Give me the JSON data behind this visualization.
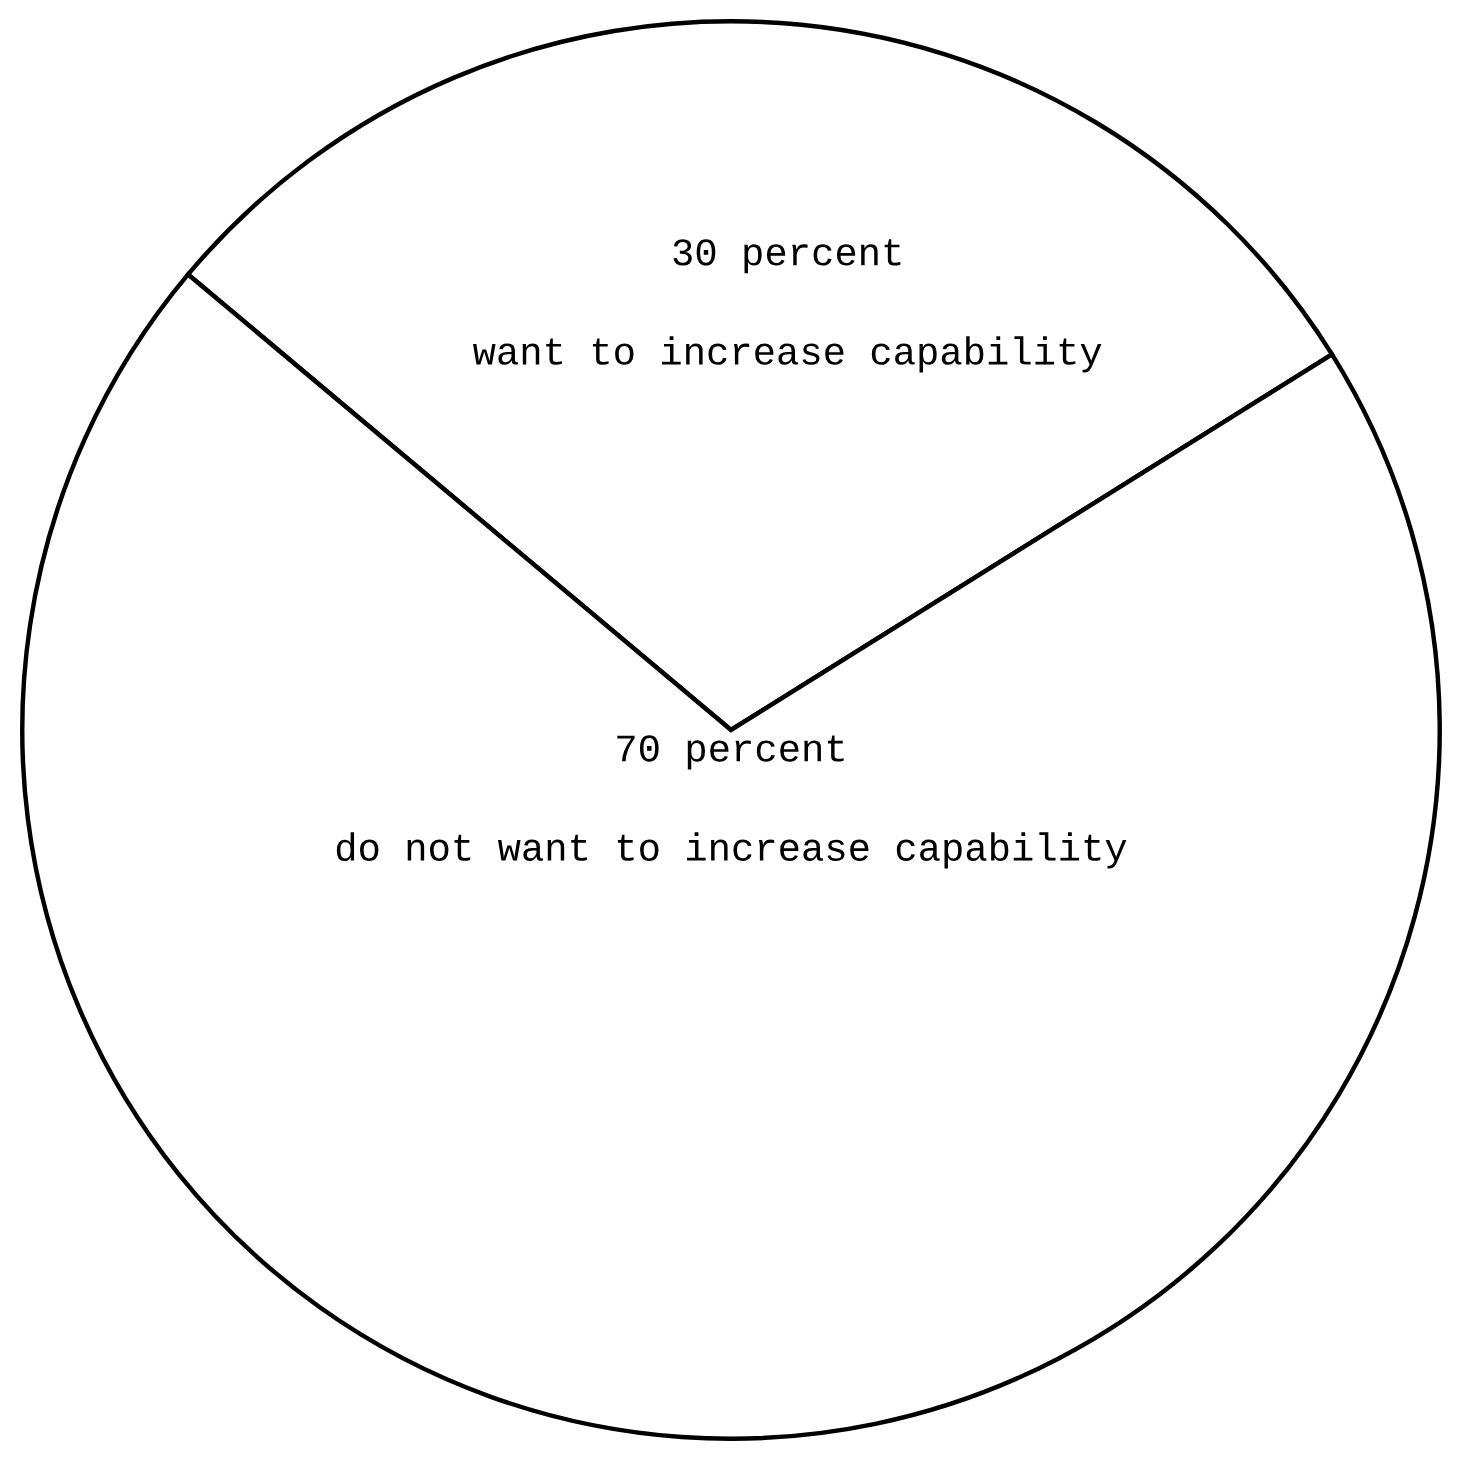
{
  "chart_data": {
    "type": "pie",
    "categories": [
      "want to increase capability",
      "do not want to increase capability"
    ],
    "values": [
      30,
      70
    ],
    "value_labels": [
      "30 percent",
      "70 percent"
    ],
    "colors": [
      "#ffffff",
      "#ffffff"
    ]
  }
}
